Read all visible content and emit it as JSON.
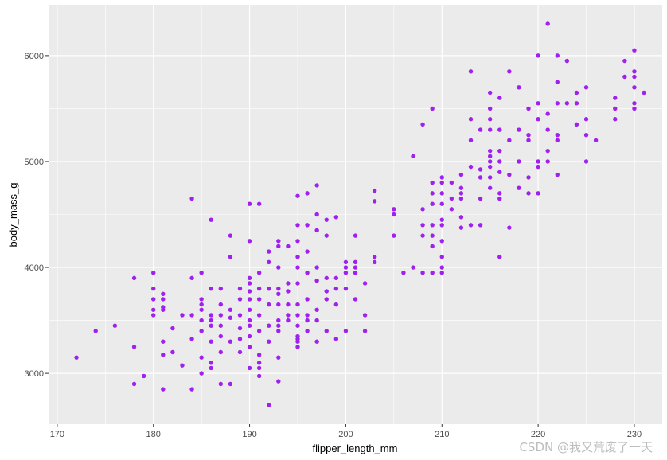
{
  "colors": {
    "panel_bg": "#EBEBEB",
    "grid_major": "#FFFFFF",
    "point": "#A020F0",
    "tick": "#333333"
  },
  "watermark": "CSDN @我又荒废了一天",
  "chart_data": {
    "type": "scatter",
    "title": "",
    "xlabel": "flipper_length_mm",
    "ylabel": "body_mass_g",
    "xlim": [
      169.1,
      232.9
    ],
    "ylim": [
      2520,
      6480
    ],
    "xticks": [
      170,
      180,
      190,
      200,
      210,
      220,
      230
    ],
    "yticks": [
      3000,
      4000,
      5000,
      6000
    ],
    "grid": true,
    "legend": "none",
    "points": [
      [
        172,
        3150
      ],
      [
        174,
        3400
      ],
      [
        176,
        3450
      ],
      [
        178,
        3900
      ],
      [
        178,
        3250
      ],
      [
        178,
        2900
      ],
      [
        179,
        2975
      ],
      [
        180,
        3950
      ],
      [
        180,
        3800
      ],
      [
        180,
        3700
      ],
      [
        180,
        3600
      ],
      [
        180,
        3550
      ],
      [
        181,
        3750
      ],
      [
        181,
        3700
      ],
      [
        181,
        3625
      ],
      [
        181,
        3600
      ],
      [
        181,
        3300
      ],
      [
        181,
        3175
      ],
      [
        181,
        2850
      ],
      [
        182,
        3425
      ],
      [
        182,
        3200
      ],
      [
        183,
        3550
      ],
      [
        183,
        3075
      ],
      [
        184,
        4650
      ],
      [
        184,
        3900
      ],
      [
        184,
        3550
      ],
      [
        184,
        3325
      ],
      [
        184,
        2850
      ],
      [
        185,
        3950
      ],
      [
        185,
        3700
      ],
      [
        185,
        3650
      ],
      [
        185,
        3600
      ],
      [
        185,
        3500
      ],
      [
        185,
        3400
      ],
      [
        185,
        3150
      ],
      [
        185,
        3000
      ],
      [
        186,
        4450
      ],
      [
        186,
        3800
      ],
      [
        186,
        3550
      ],
      [
        186,
        3500
      ],
      [
        186,
        3450
      ],
      [
        186,
        3300
      ],
      [
        186,
        3100
      ],
      [
        186,
        3050
      ],
      [
        187,
        3800
      ],
      [
        187,
        3650
      ],
      [
        187,
        3550
      ],
      [
        187,
        3450
      ],
      [
        187,
        3350
      ],
      [
        187,
        3200
      ],
      [
        187,
        2900
      ],
      [
        188,
        4300
      ],
      [
        188,
        4100
      ],
      [
        188,
        3600
      ],
      [
        188,
        3525
      ],
      [
        188,
        3300
      ],
      [
        188,
        2900
      ],
      [
        189,
        3800
      ],
      [
        189,
        3700
      ],
      [
        189,
        3550
      ],
      [
        189,
        3425
      ],
      [
        189,
        3325
      ],
      [
        189,
        3200
      ],
      [
        190,
        4600
      ],
      [
        190,
        4250
      ],
      [
        190,
        3900
      ],
      [
        190,
        3850
      ],
      [
        190,
        3775
      ],
      [
        190,
        3700
      ],
      [
        190,
        3600
      ],
      [
        190,
        3500
      ],
      [
        190,
        3450
      ],
      [
        190,
        3350
      ],
      [
        190,
        3250
      ],
      [
        190,
        3050
      ],
      [
        191,
        4600
      ],
      [
        191,
        3950
      ],
      [
        191,
        3800
      ],
      [
        191,
        3700
      ],
      [
        191,
        3550
      ],
      [
        191,
        3400
      ],
      [
        191,
        3175
      ],
      [
        191,
        3100
      ],
      [
        191,
        3050
      ],
      [
        191,
        2975
      ],
      [
        192,
        4150
      ],
      [
        192,
        4050
      ],
      [
        192,
        3800
      ],
      [
        192,
        3650
      ],
      [
        192,
        3450
      ],
      [
        192,
        3300
      ],
      [
        192,
        2700
      ],
      [
        193,
        4250
      ],
      [
        193,
        4200
      ],
      [
        193,
        4000
      ],
      [
        193,
        3800
      ],
      [
        193,
        3750
      ],
      [
        193,
        3650
      ],
      [
        193,
        3500
      ],
      [
        193,
        3450
      ],
      [
        193,
        3400
      ],
      [
        193,
        3150
      ],
      [
        193,
        2925
      ],
      [
        194,
        4200
      ],
      [
        194,
        3850
      ],
      [
        194,
        3775
      ],
      [
        194,
        3650
      ],
      [
        194,
        3550
      ],
      [
        194,
        3500
      ],
      [
        195,
        4675
      ],
      [
        195,
        4400
      ],
      [
        195,
        4250
      ],
      [
        195,
        4100
      ],
      [
        195,
        4000
      ],
      [
        195,
        3850
      ],
      [
        195,
        3650
      ],
      [
        195,
        3550
      ],
      [
        195,
        3450
      ],
      [
        195,
        3350
      ],
      [
        195,
        3325
      ],
      [
        195,
        3300
      ],
      [
        195,
        3250
      ],
      [
        196,
        4700
      ],
      [
        196,
        4400
      ],
      [
        196,
        4150
      ],
      [
        196,
        3950
      ],
      [
        196,
        3700
      ],
      [
        196,
        3550
      ],
      [
        196,
        3500
      ],
      [
        196,
        3400
      ],
      [
        197,
        4775
      ],
      [
        197,
        4500
      ],
      [
        197,
        4350
      ],
      [
        197,
        4000
      ],
      [
        197,
        3875
      ],
      [
        197,
        3600
      ],
      [
        197,
        3500
      ],
      [
        197,
        3300
      ],
      [
        198,
        4450
      ],
      [
        198,
        4300
      ],
      [
        198,
        3900
      ],
      [
        198,
        3775
      ],
      [
        198,
        3700
      ],
      [
        198,
        3400
      ],
      [
        199,
        4475
      ],
      [
        199,
        3900
      ],
      [
        199,
        3800
      ],
      [
        199,
        3650
      ],
      [
        199,
        3325
      ],
      [
        200,
        4050
      ],
      [
        200,
        4000
      ],
      [
        200,
        3950
      ],
      [
        200,
        3800
      ],
      [
        200,
        3400
      ],
      [
        201,
        4300
      ],
      [
        201,
        4050
      ],
      [
        201,
        3950
      ],
      [
        201,
        4000
      ],
      [
        201,
        3700
      ],
      [
        202,
        3850
      ],
      [
        202,
        3550
      ],
      [
        202,
        3400
      ],
      [
        203,
        4725
      ],
      [
        203,
        4625
      ],
      [
        203,
        4100
      ],
      [
        203,
        4050
      ],
      [
        205,
        4550
      ],
      [
        205,
        4500
      ],
      [
        205,
        4300
      ],
      [
        206,
        3950
      ],
      [
        207,
        5050
      ],
      [
        207,
        4000
      ],
      [
        208,
        5350
      ],
      [
        208,
        4550
      ],
      [
        208,
        4400
      ],
      [
        208,
        4300
      ],
      [
        208,
        3950
      ],
      [
        209,
        5500
      ],
      [
        209,
        4800
      ],
      [
        209,
        4700
      ],
      [
        209,
        4600
      ],
      [
        209,
        4400
      ],
      [
        209,
        4300
      ],
      [
        209,
        4200
      ],
      [
        209,
        3950
      ],
      [
        210,
        4850
      ],
      [
        210,
        4800
      ],
      [
        210,
        4700
      ],
      [
        210,
        4600
      ],
      [
        210,
        4450
      ],
      [
        210,
        4400
      ],
      [
        210,
        4250
      ],
      [
        210,
        4100
      ],
      [
        210,
        4000
      ],
      [
        210,
        3950
      ],
      [
        211,
        4800
      ],
      [
        211,
        4650
      ],
      [
        211,
        4550
      ],
      [
        212,
        4875
      ],
      [
        212,
        4750
      ],
      [
        212,
        4700
      ],
      [
        212,
        4650
      ],
      [
        212,
        4475
      ],
      [
        212,
        4375
      ],
      [
        213,
        5850
      ],
      [
        213,
        5400
      ],
      [
        213,
        5200
      ],
      [
        213,
        4950
      ],
      [
        213,
        4400
      ],
      [
        214,
        5300
      ],
      [
        214,
        4925
      ],
      [
        214,
        4850
      ],
      [
        214,
        4650
      ],
      [
        214,
        4400
      ],
      [
        215,
        5650
      ],
      [
        215,
        5500
      ],
      [
        215,
        5400
      ],
      [
        215,
        5300
      ],
      [
        215,
        5100
      ],
      [
        215,
        5050
      ],
      [
        215,
        5000
      ],
      [
        215,
        4950
      ],
      [
        215,
        4850
      ],
      [
        215,
        4750
      ],
      [
        216,
        5600
      ],
      [
        216,
        5300
      ],
      [
        216,
        5100
      ],
      [
        216,
        5000
      ],
      [
        216,
        4900
      ],
      [
        216,
        4700
      ],
      [
        216,
        4650
      ],
      [
        216,
        4100
      ],
      [
        217,
        5850
      ],
      [
        217,
        5200
      ],
      [
        217,
        4875
      ],
      [
        217,
        4375
      ],
      [
        218,
        5700
      ],
      [
        218,
        5300
      ],
      [
        218,
        5000
      ],
      [
        218,
        4750
      ],
      [
        219,
        5500
      ],
      [
        219,
        5250
      ],
      [
        219,
        5200
      ],
      [
        219,
        4850
      ],
      [
        219,
        4700
      ],
      [
        220,
        6000
      ],
      [
        220,
        5550
      ],
      [
        220,
        5400
      ],
      [
        220,
        5000
      ],
      [
        220,
        4950
      ],
      [
        220,
        4700
      ],
      [
        221,
        6300
      ],
      [
        221,
        5450
      ],
      [
        221,
        5300
      ],
      [
        221,
        5100
      ],
      [
        221,
        5000
      ],
      [
        222,
        6000
      ],
      [
        222,
        5750
      ],
      [
        222,
        5550
      ],
      [
        222,
        5250
      ],
      [
        222,
        5200
      ],
      [
        222,
        4875
      ],
      [
        223,
        5950
      ],
      [
        223,
        5550
      ],
      [
        224,
        5650
      ],
      [
        224,
        5550
      ],
      [
        224,
        5350
      ],
      [
        225,
        5700
      ],
      [
        225,
        5400
      ],
      [
        225,
        5250
      ],
      [
        225,
        5000
      ],
      [
        226,
        5200
      ],
      [
        228,
        5600
      ],
      [
        228,
        5500
      ],
      [
        228,
        5400
      ],
      [
        229,
        5950
      ],
      [
        229,
        5800
      ],
      [
        230,
        6050
      ],
      [
        230,
        5850
      ],
      [
        230,
        5800
      ],
      [
        230,
        5700
      ],
      [
        230,
        5550
      ],
      [
        230,
        5500
      ],
      [
        231,
        5650
      ]
    ]
  }
}
